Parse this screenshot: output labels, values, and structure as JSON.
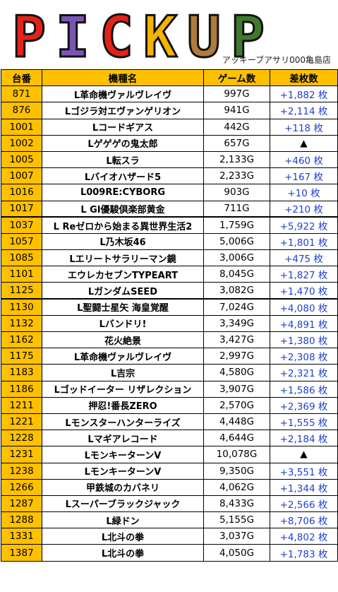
{
  "header": {
    "logo_letters": [
      "P",
      "I",
      "C",
      "K",
      "U",
      "P"
    ],
    "logo_colors": [
      "#e2231a",
      "#7b55b5",
      "#e2231a",
      "#f4b400",
      "#b07a3a",
      "#3f7a2e"
    ],
    "subtitle": "アッキーブアサリ000亀島店"
  },
  "table": {
    "columns": [
      "台番",
      "機種名",
      "ゲーム数",
      "差枚数"
    ],
    "rows": [
      {
        "no": "871",
        "name": "L革命機ヴァルヴレイヴ",
        "games": "997G",
        "diff": "+1,882 枚"
      },
      {
        "no": "876",
        "name": "Lゴジラ対エヴァンゲリオン",
        "games": "941G",
        "diff": "+2,114 枚"
      },
      {
        "no": "1001",
        "name": "Lコードギアス",
        "games": "442G",
        "diff": "+118 枚"
      },
      {
        "no": "1002",
        "name": "Lゲゲゲの鬼太郎",
        "games": "657G",
        "diff": "▲"
      },
      {
        "no": "1005",
        "name": "L転スラ",
        "games": "2,133G",
        "diff": "+460 枚"
      },
      {
        "no": "1007",
        "name": "Lバイオハザード5",
        "games": "2,233G",
        "diff": "+167 枚"
      },
      {
        "no": "1016",
        "name": "L009RE:CYBORG",
        "games": "903G",
        "diff": "+10 枚"
      },
      {
        "no": "1017",
        "name": "L GI優駿倶楽部黄金",
        "games": "711G",
        "diff": "+210 枚"
      },
      {
        "no": "1037",
        "name": "L Reゼロから始まる異世界生活2",
        "games": "1,759G",
        "diff": "+5,922 枚"
      },
      {
        "no": "1057",
        "name": "L乃木坂46",
        "games": "5,006G",
        "diff": "+1,801 枚"
      },
      {
        "no": "1085",
        "name": "Lエリートサラリーマン鏡",
        "games": "3,006G",
        "diff": "+475 枚"
      },
      {
        "no": "1101",
        "name": "エウレカセブンTYPEART",
        "games": "8,045G",
        "diff": "+1,827 枚"
      },
      {
        "no": "1125",
        "name": "LガンダムSEED",
        "games": "3,082G",
        "diff": "+1,470 枚"
      },
      {
        "no": "1130",
        "name": "L聖闘士星矢 海皇覚醒",
        "games": "7,024G",
        "diff": "+4,080 枚"
      },
      {
        "no": "1132",
        "name": "Lバンドリ!",
        "games": "3,349G",
        "diff": "+4,891 枚"
      },
      {
        "no": "1162",
        "name": "花火絶景",
        "games": "3,427G",
        "diff": "+1,380 枚"
      },
      {
        "no": "1175",
        "name": "L革命機ヴァルヴレイヴ",
        "games": "2,997G",
        "diff": "+2,308 枚"
      },
      {
        "no": "1183",
        "name": "L吉宗",
        "games": "4,580G",
        "diff": "+2,321 枚"
      },
      {
        "no": "1186",
        "name": "Lゴッドイーター リザレクション",
        "games": "3,907G",
        "diff": "+1,586 枚"
      },
      {
        "no": "1211",
        "name": "押忍!番長ZERO",
        "games": "2,570G",
        "diff": "+2,369 枚"
      },
      {
        "no": "1221",
        "name": "Lモンスターハンターライズ",
        "games": "4,448G",
        "diff": "+1,555 枚"
      },
      {
        "no": "1228",
        "name": "Lマギアレコード",
        "games": "4,644G",
        "diff": "+2,184 枚"
      },
      {
        "no": "1231",
        "name": "LモンキーターンV",
        "games": "10,078G",
        "diff": "▲"
      },
      {
        "no": "1238",
        "name": "LモンキーターンV",
        "games": "9,350G",
        "diff": "+3,551 枚"
      },
      {
        "no": "1266",
        "name": "甲鉄城のカバネリ",
        "games": "4,062G",
        "diff": "+1,344 枚"
      },
      {
        "no": "1287",
        "name": "Lスーパーブラックジャック",
        "games": "8,433G",
        "diff": "+2,566 枚"
      },
      {
        "no": "1288",
        "name": "L緑ドン",
        "games": "5,155G",
        "diff": "+8,706 枚"
      },
      {
        "no": "1331",
        "name": "L北斗の拳",
        "games": "3,037G",
        "diff": "+4,802 枚"
      },
      {
        "no": "1387",
        "name": "L北斗の拳",
        "games": "4,050G",
        "diff": "+1,783 枚"
      }
    ]
  }
}
